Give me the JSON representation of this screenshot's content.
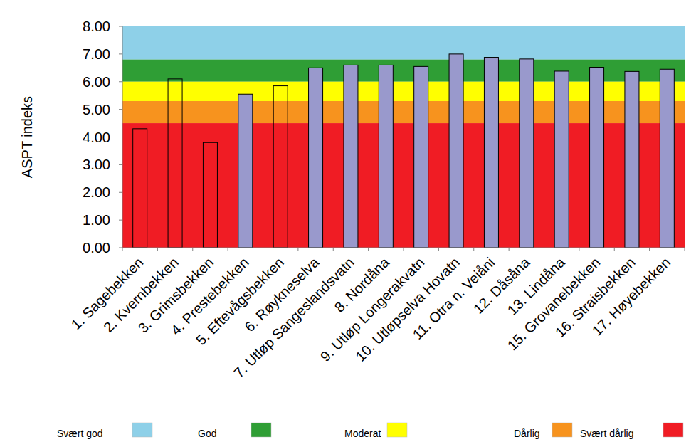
{
  "chart_data": {
    "type": "bar",
    "y_label": "ASPT indeks",
    "categories": [
      "1. Sagebekken",
      "2. Kvernbekken",
      "3. Grimsbekken",
      "4. Prestebekken",
      "5. Eftevågsbekken",
      "6. Røykneselva",
      "7. Utløp Sangeslandsvatn",
      "8. Nordåna",
      "9. Utløp Longerakvatn",
      "10. Utløpselva Hovatn",
      "11. Otra n. Veiåni",
      "12. Dåsåna",
      "13. Lindåna",
      "15. Grovanebekken",
      "16. Straisbekken",
      "17. Høyebekken"
    ],
    "values": [
      4.3,
      6.1,
      3.8,
      5.55,
      5.85,
      6.5,
      6.6,
      6.6,
      6.55,
      7.0,
      6.88,
      6.82,
      6.38,
      6.52,
      6.37,
      6.45
    ],
    "colors": [
      "none",
      "none",
      "none",
      "#9999cc",
      "none",
      "#9999cc",
      "#9999cc",
      "#9999cc",
      "#9999cc",
      "#9999cc",
      "#9999cc",
      "#9999cc",
      "#9999cc",
      "#9999cc",
      "#9999cc",
      "#9999cc"
    ],
    "ylim": [
      0,
      8
    ],
    "yticks": [
      {
        "value": 0,
        "label": "0.00"
      },
      {
        "value": 1,
        "label": "1.00"
      },
      {
        "value": 2,
        "label": "2.00"
      },
      {
        "value": 3,
        "label": "3.00"
      },
      {
        "value": 4,
        "label": "4.00"
      },
      {
        "value": 5,
        "label": "5.00"
      },
      {
        "value": 6,
        "label": "6.00"
      },
      {
        "value": 7,
        "label": "7.00"
      },
      {
        "value": 8,
        "label": "8.00"
      }
    ],
    "grid": false,
    "legend": "bottom",
    "bands": [
      {
        "name": "Svært god",
        "from": 6.8,
        "to": 8,
        "color": "#8ed0e8"
      },
      {
        "name": "God",
        "from": 6.0,
        "to": 6.8,
        "color": "#2f9e35"
      },
      {
        "name": "Moderat",
        "from": 5.3,
        "to": 6.0,
        "color": "#ffff00"
      },
      {
        "name": "Dårlig",
        "from": 4.5,
        "to": 5.3,
        "color": "#f7931e"
      },
      {
        "name": "Svært dårlig",
        "from": 0,
        "to": 4.5,
        "color": "#f01c24"
      }
    ]
  }
}
